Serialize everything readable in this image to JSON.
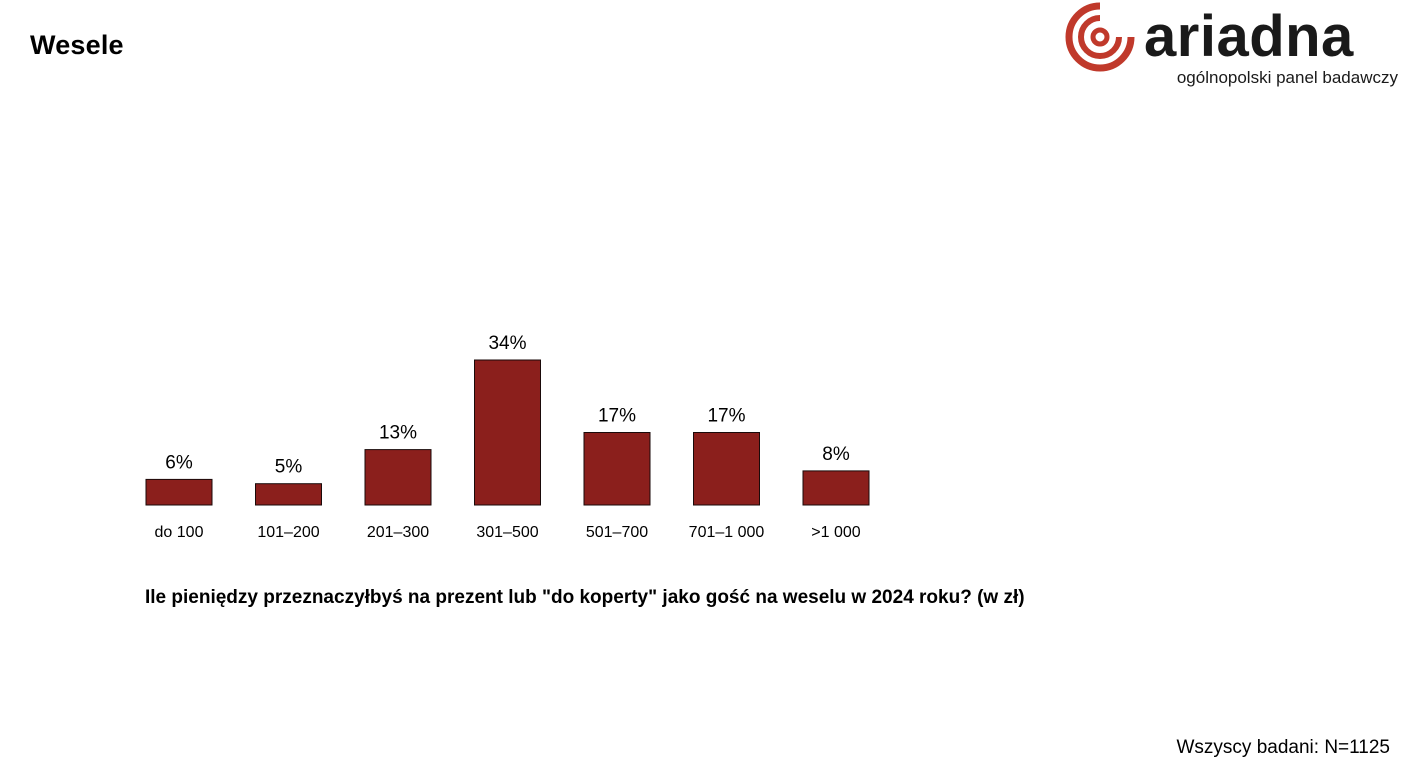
{
  "title": "Wesele",
  "logo": {
    "wordmark": "ariadna",
    "tagline": "ogólnopolski panel badawczy",
    "brand_color": "#c0392b",
    "text_color": "#1a1a1a"
  },
  "chart_data": {
    "type": "bar",
    "title": "Ile pieniędzy  przeznaczyłbyś na prezent lub \"do koperty\" jako gość na weselu w 2024 roku? (w zł)",
    "categories": [
      "do 100",
      "101–200",
      "201–300",
      "301–500",
      "501–700",
      "701–1 000",
      ">1 000"
    ],
    "values": [
      6,
      5,
      13,
      34,
      17,
      17,
      8
    ],
    "value_labels": [
      "6%",
      "5%",
      "13%",
      "34%",
      "17%",
      "17%",
      "8%"
    ],
    "xlabel": "",
    "ylabel": "",
    "ylim": [
      0,
      34
    ],
    "grid": false,
    "legend": "none",
    "bar_color": "#8b1f1c"
  },
  "footnote": "Wszyscy badani: N=1125"
}
